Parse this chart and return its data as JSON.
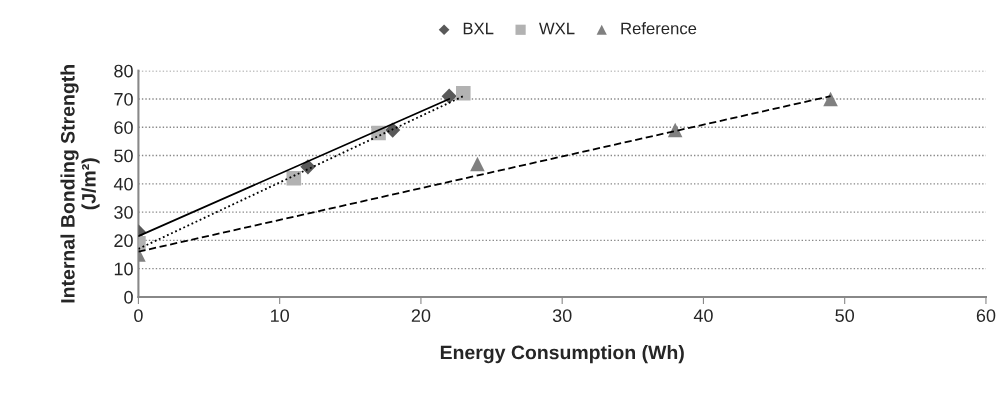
{
  "chart_data": {
    "type": "scatter",
    "xlabel": "Energy Consumption (Wh)",
    "ylabel": "Internal Bonding Strength\n(J/m²)",
    "xlim": [
      0,
      60
    ],
    "xticks": [
      0,
      10,
      20,
      30,
      40,
      50,
      60
    ],
    "ylim": [
      0,
      80
    ],
    "yticks": [
      0,
      10,
      20,
      30,
      40,
      50,
      60,
      70,
      80
    ],
    "grid": "y",
    "legend": "top",
    "series": [
      {
        "name": "BXL",
        "color": "#595959",
        "marker": "diamond",
        "x": [
          0,
          12,
          18,
          22
        ],
        "values": [
          23,
          46,
          59,
          71
        ]
      },
      {
        "name": "WXL",
        "color": "#b2b2b2",
        "marker": "square",
        "x": [
          0,
          11,
          17,
          23
        ],
        "values": [
          19,
          42,
          58,
          72
        ]
      },
      {
        "name": "Reference",
        "color": "#808080",
        "marker": "triangle",
        "x": [
          0,
          24,
          38,
          49
        ],
        "values": [
          15,
          47,
          59,
          70
        ]
      },
      {
        "type": "line",
        "color": "#000000",
        "line_style": "solid",
        "x": [
          0,
          22
        ],
        "values": [
          21.5,
          70
        ]
      },
      {
        "type": "line",
        "color": "#000000",
        "line_style": "dotted",
        "x": [
          0,
          23
        ],
        "values": [
          17,
          71
        ]
      },
      {
        "type": "line",
        "color": "#000000",
        "line_style": "dashed",
        "x": [
          0,
          49
        ],
        "values": [
          16,
          71
        ]
      }
    ]
  }
}
